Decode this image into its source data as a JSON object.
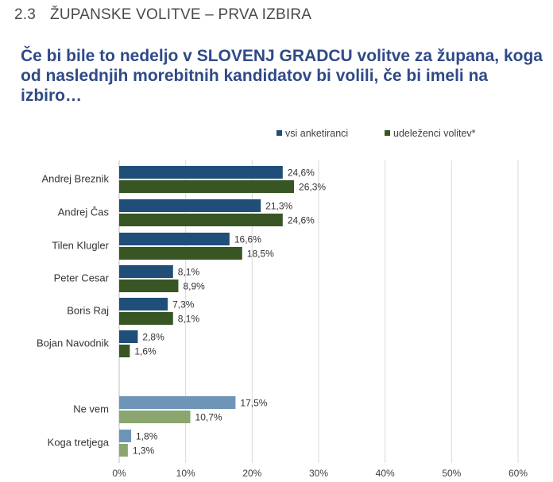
{
  "section": {
    "number": "2.3",
    "title": "ŽUPANSKE VOLITVE – PRVA IZBIRA"
  },
  "question": "Če bi bile to nedeljo v SLOVENJ GRADCU volitve za župana, koga od naslednjih morebitnih kandidatov bi volili, če bi imeli na izbiro…",
  "colors": {
    "series1": "#1f4e79",
    "series2": "#375623",
    "series1_light": "#6e95b8",
    "series2_light": "#8aa66e",
    "grid": "#d9d9d9",
    "heading": "#2f4a87"
  },
  "chart_data": {
    "type": "bar",
    "orientation": "horizontal",
    "categories": [
      "Andrej Breznik",
      "Andrej Čas",
      "Tilen Klugler",
      "Peter Cesar",
      "Boris Raj",
      "Bojan Navodnik",
      "Ne vem",
      "Koga tretjega"
    ],
    "series": [
      {
        "name": "vsi anketiranci",
        "values": [
          24.6,
          21.3,
          16.6,
          8.1,
          7.3,
          2.8,
          17.5,
          1.8
        ],
        "labels": [
          "24,6%",
          "21,3%",
          "16,6%",
          "8,1%",
          "7,3%",
          "2,8%",
          "17,5%",
          "1,8%"
        ]
      },
      {
        "name": "udeleženci volitev*",
        "values": [
          26.3,
          24.6,
          18.5,
          8.9,
          8.1,
          1.6,
          10.7,
          1.3
        ],
        "labels": [
          "26,3%",
          "24,6%",
          "18,5%",
          "8,9%",
          "8,1%",
          "1,6%",
          "10,7%",
          "1,3%"
        ]
      }
    ],
    "xlim": [
      0,
      60
    ],
    "ticks": [
      "0%",
      "10%",
      "20%",
      "30%",
      "40%",
      "50%",
      "60%"
    ],
    "grid": true,
    "legend": "top-right",
    "light_categories": [
      "Ne vem",
      "Koga tretjega"
    ]
  }
}
